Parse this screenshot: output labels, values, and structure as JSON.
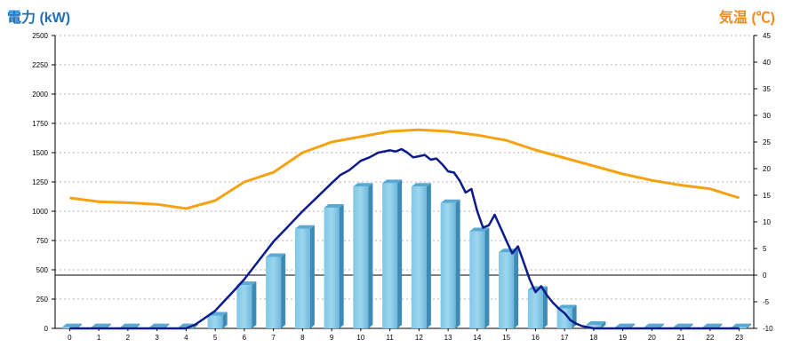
{
  "chart_data": {
    "type": "bar+line",
    "left_axis_title": "電力 (kW)",
    "right_axis_title": "気温 (℃)",
    "categories": [
      "0",
      "1",
      "2",
      "3",
      "4",
      "5",
      "6",
      "7",
      "8",
      "9",
      "10",
      "11",
      "12",
      "13",
      "14",
      "15",
      "16",
      "17",
      "18",
      "19",
      "20",
      "21",
      "22",
      "23"
    ],
    "left_ticks": [
      0,
      250,
      500,
      750,
      1000,
      1250,
      1500,
      1750,
      2000,
      2250,
      2500
    ],
    "right_ticks": [
      -10,
      -5,
      0,
      5,
      10,
      15,
      20,
      25,
      30,
      35,
      40,
      45
    ],
    "ylim_left": [
      0,
      2500
    ],
    "ylim_right": [
      -10,
      45
    ],
    "grid": true,
    "series": [
      {
        "kind": "bar",
        "axis": "left",
        "values": [
          10,
          10,
          10,
          10,
          10,
          110,
          370,
          610,
          850,
          1030,
          1210,
          1240,
          1210,
          1070,
          830,
          650,
          330,
          170,
          30,
          10,
          10,
          10,
          10,
          10
        ]
      },
      {
        "kind": "line",
        "axis": "left",
        "x": [
          0,
          1,
          2,
          3,
          4,
          4.3,
          4.6,
          5,
          5.3,
          5.6,
          6,
          6.5,
          7,
          7.5,
          8,
          8.5,
          9,
          9.3,
          9.6,
          10,
          10.3,
          10.6,
          11,
          11.2,
          11.4,
          11.6,
          11.8,
          12,
          12.2,
          12.4,
          12.6,
          12.8,
          13,
          13.2,
          13.4,
          13.6,
          13.8,
          14,
          14.2,
          14.4,
          14.6,
          14.8,
          15,
          15.2,
          15.4,
          15.6,
          15.8,
          16,
          16.2,
          16.4,
          16.6,
          16.8,
          17,
          17.2,
          17.4,
          17.6,
          17.8,
          18,
          19,
          20,
          21,
          22,
          23
        ],
        "values": [
          0,
          0,
          0,
          0,
          0,
          30,
          80,
          150,
          230,
          310,
          420,
          580,
          740,
          870,
          1000,
          1120,
          1240,
          1310,
          1350,
          1430,
          1460,
          1500,
          1520,
          1510,
          1530,
          1500,
          1460,
          1470,
          1480,
          1440,
          1450,
          1400,
          1340,
          1330,
          1260,
          1160,
          1190,
          1000,
          860,
          880,
          970,
          860,
          750,
          640,
          700,
          560,
          420,
          310,
          360,
          280,
          220,
          170,
          130,
          70,
          40,
          20,
          10,
          0,
          0,
          0,
          0,
          0,
          0
        ]
      },
      {
        "kind": "line",
        "axis": "right",
        "values": [
          14.5,
          13.8,
          13.6,
          13.3,
          12.5,
          14,
          17.5,
          19.3,
          23,
          25,
          26,
          27,
          27.3,
          27,
          26.3,
          25.3,
          23.5,
          22,
          20.5,
          19,
          17.8,
          16.9,
          16.2,
          14.5
        ]
      }
    ]
  }
}
